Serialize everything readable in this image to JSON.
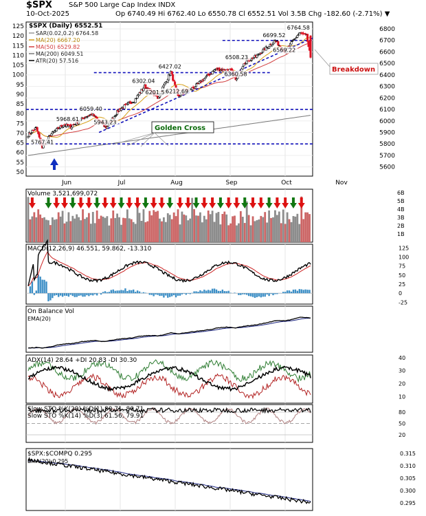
{
  "header": {
    "symbol": "$SPX",
    "name": "S&P 500 Large Cap Index INDX",
    "date": "10-Oct-2025",
    "ohlc": "Op 6740.49  Hi 6762.40  Lo 6550.78  Cl 6552.51  Vol 3.5B  Chg -182.60 (-2.71%) ▼"
  },
  "colors": {
    "up": "#000000",
    "down": "#dd1122",
    "sar": "#999999",
    "ma20": "#d7a11a",
    "ma50": "#d23c3c",
    "ma200": "#777777",
    "trend": "#1111bb",
    "arrow_up": "#117711",
    "arrow_down": "#dd1111",
    "vol_up": "#8c8c8c",
    "vol_down": "#cc6666",
    "macd": "#000000",
    "signal": "#cc2222",
    "hist": "#3d8fc6",
    "obv": "#000000",
    "obv_ema": "#1a237e",
    "adx": "#000000",
    "pdi": "#2e7d32",
    "mdi": "#b22222",
    "sto_k": "#000000",
    "sto_d": "#cc2222",
    "ratio": "#000000",
    "ratio_ema": "#1a237e"
  },
  "chart_data": [
    {
      "id": "price",
      "type": "candlestick",
      "title": "$SPX (Daily) 6552.51",
      "legend": [
        "SAR(0.02,0.2) 6764.58",
        "MA(20) 6667.20",
        "MA(50) 6529.82",
        "MA(200) 6049.51",
        "ATR(20) 57.516"
      ],
      "x_labels": [
        "Jun",
        "Jul",
        "Aug",
        "Sep",
        "Oct",
        "Nov"
      ],
      "y_right": [
        5600,
        5700,
        5800,
        5900,
        6000,
        6100,
        6200,
        6300,
        6400,
        6500,
        6600,
        6700,
        6800
      ],
      "y_left": [
        50,
        55,
        60,
        65,
        70,
        75,
        80,
        85,
        90,
        95,
        100,
        105,
        110,
        115,
        120,
        125
      ],
      "ylim": [
        5520,
        6860
      ],
      "annotations": [
        {
          "text": "5968.61",
          "x": 40,
          "y": 5968
        },
        {
          "text": "6059.40",
          "x": 63,
          "y": 6059
        },
        {
          "text": "5943.23",
          "x": 77,
          "y": 5943
        },
        {
          "text": "6302.04",
          "x": 115,
          "y": 6302
        },
        {
          "text": "6201.58",
          "x": 128,
          "y": 6201
        },
        {
          "text": "6427.02",
          "x": 141,
          "y": 6427
        },
        {
          "text": "6212.69",
          "x": 148,
          "y": 6212
        },
        {
          "text": "6508.23",
          "x": 207,
          "y": 6508
        },
        {
          "text": "6360.58",
          "x": 206,
          "y": 6360
        },
        {
          "text": "6699.52",
          "x": 244,
          "y": 6699
        },
        {
          "text": "6569.22",
          "x": 254,
          "y": 6569
        },
        {
          "text": "6764.58",
          "x": 268,
          "y": 6764
        },
        {
          "text": "5767.41",
          "x": 15,
          "y": 5767
        }
      ],
      "labels": [
        "Golden Cross",
        "Breakdown"
      ],
      "levels": [
        6100,
        5800,
        6700,
        6420
      ]
    },
    {
      "id": "volume",
      "type": "bar",
      "title": "Volume 3,521,699,072",
      "y_right": [
        "1B",
        "2B",
        "3B",
        "4B",
        "5B",
        "6B"
      ]
    },
    {
      "id": "macd",
      "type": "line",
      "title": "MACD(12,26,9) 46.551, 59.862, -13.310",
      "y_right": [
        -25,
        0,
        25,
        50,
        75,
        100,
        125
      ]
    },
    {
      "id": "obv",
      "type": "line",
      "title": "On Balance Vol",
      "legend": [
        "EMA(20)"
      ]
    },
    {
      "id": "adx",
      "type": "line",
      "title": "ADX(14) 28.64  +DI 20.83  -DI 30.30",
      "y_right": [
        10,
        20,
        30,
        40
      ]
    },
    {
      "id": "sto",
      "type": "line",
      "title": "Slow STO %K(29) %D(1) 80.71, 80.71",
      "subtitle": "Slow STO %K(14) %D(3) 61.56, 79.91",
      "y_right": [
        20,
        50,
        80
      ]
    },
    {
      "id": "ratio",
      "type": "line",
      "title": "$SPX:$COMPQ 0.295",
      "legend": [
        "EMA(20) 0.295"
      ],
      "y_right": [
        0.295,
        0.3,
        0.305,
        0.31,
        0.315
      ]
    }
  ]
}
